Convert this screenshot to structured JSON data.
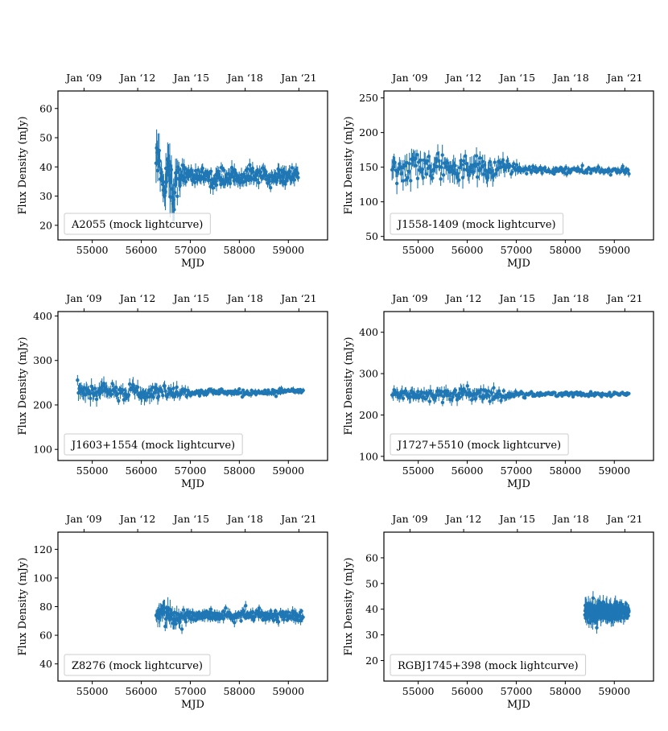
{
  "figure": {
    "series_color": "#1f77b4"
  },
  "chart_data": [
    {
      "type": "scatter",
      "legend": "A2055 (mock lightcurve)",
      "legend_position": "lower-left",
      "xlabel": "MJD",
      "ylabel": "Flux Density (mJy)",
      "xlim": [
        54300,
        59800
      ],
      "ylim": [
        15,
        66
      ],
      "xticks": [
        55000,
        56000,
        57000,
        58000,
        59000
      ],
      "yticks": [
        20,
        30,
        40,
        50,
        60
      ],
      "top_axis_ticks": [
        {
          "label": "Jan ‘09",
          "mjd": 54832
        },
        {
          "label": "Jan ‘12",
          "mjd": 55927
        },
        {
          "label": "Jan ‘15",
          "mjd": 57023
        },
        {
          "label": "Jan ‘18",
          "mjd": 58119
        },
        {
          "label": "Jan ‘21",
          "mjd": 59215
        }
      ],
      "x_range": [
        56300,
        59200
      ],
      "series": [
        {
          "x": [
            56330,
            56400,
            56480,
            56560,
            56640,
            56720,
            56900,
            57100,
            57500,
            57900,
            58100,
            58300,
            58600,
            58900,
            59150
          ],
          "y": [
            45,
            38,
            35,
            40,
            30,
            36,
            38,
            37,
            36,
            37,
            36,
            38,
            36,
            37,
            37
          ],
          "yerr": [
            8,
            7,
            8,
            9,
            10,
            6,
            3,
            3,
            3,
            3,
            3,
            3,
            3,
            3,
            3
          ]
        }
      ]
    },
    {
      "type": "scatter",
      "legend": "J1558-1409 (mock lightcurve)",
      "legend_position": "lower-left",
      "xlabel": "MJD",
      "ylabel": "Flux Density (mJy)",
      "xlim": [
        54300,
        59800
      ],
      "ylim": [
        45,
        260
      ],
      "xticks": [
        55000,
        56000,
        57000,
        58000,
        59000
      ],
      "yticks": [
        50,
        100,
        150,
        200,
        250
      ],
      "top_axis_ticks": [
        {
          "label": "Jan ‘09",
          "mjd": 54832
        },
        {
          "label": "Jan ‘12",
          "mjd": 55927
        },
        {
          "label": "Jan ‘15",
          "mjd": 57023
        },
        {
          "label": "Jan ‘18",
          "mjd": 58119
        },
        {
          "label": "Jan ‘21",
          "mjd": 59215
        }
      ],
      "x_range": [
        54470,
        59300
      ],
      "series": [
        {
          "x": [
            54500,
            54900,
            55300,
            55700,
            56100,
            56500,
            56750,
            57200,
            57700,
            58200,
            58700,
            59200
          ],
          "y": [
            145,
            150,
            148,
            146,
            152,
            145,
            150,
            146,
            145,
            146,
            145,
            144
          ],
          "yerr": [
            20,
            20,
            18,
            20,
            20,
            18,
            15,
            6,
            6,
            6,
            6,
            6
          ]
        }
      ]
    },
    {
      "type": "scatter",
      "legend": "J1603+1554 (mock lightcurve)",
      "legend_position": "lower-left",
      "xlabel": "MJD",
      "ylabel": "Flux Density (mJy)",
      "xlim": [
        54300,
        59800
      ],
      "ylim": [
        75,
        410
      ],
      "xticks": [
        55000,
        56000,
        57000,
        58000,
        59000
      ],
      "yticks": [
        100,
        200,
        300,
        400
      ],
      "top_axis_ticks": [
        {
          "label": "Jan ‘09",
          "mjd": 54832
        },
        {
          "label": "Jan ‘12",
          "mjd": 55927
        },
        {
          "label": "Jan ‘15",
          "mjd": 57023
        },
        {
          "label": "Jan ‘18",
          "mjd": 58119
        },
        {
          "label": "Jan ‘21",
          "mjd": 59215
        }
      ],
      "x_range": [
        54700,
        59300
      ],
      "series": [
        {
          "x": [
            54750,
            55200,
            55700,
            56200,
            56700,
            57100,
            57600,
            58100,
            58600,
            59100
          ],
          "y": [
            228,
            230,
            228,
            229,
            230,
            228,
            229,
            228,
            229,
            230
          ],
          "yerr": [
            22,
            22,
            20,
            20,
            18,
            8,
            8,
            8,
            8,
            8
          ]
        }
      ]
    },
    {
      "type": "scatter",
      "legend": "J1727+5510 (mock lightcurve)",
      "legend_position": "lower-left",
      "xlabel": "MJD",
      "ylabel": "Flux Density (mJy)",
      "xlim": [
        54300,
        59800
      ],
      "ylim": [
        90,
        450
      ],
      "xticks": [
        55000,
        56000,
        57000,
        58000,
        59000
      ],
      "yticks": [
        100,
        200,
        300,
        400
      ],
      "top_axis_ticks": [
        {
          "label": "Jan ‘09",
          "mjd": 54832
        },
        {
          "label": "Jan ‘12",
          "mjd": 55927
        },
        {
          "label": "Jan ‘15",
          "mjd": 57023
        },
        {
          "label": "Jan ‘18",
          "mjd": 58119
        },
        {
          "label": "Jan ‘21",
          "mjd": 59215
        }
      ],
      "x_range": [
        54470,
        59300
      ],
      "series": [
        {
          "x": [
            54500,
            55000,
            55500,
            56000,
            56500,
            56800,
            57300,
            57800,
            58300,
            58800,
            59250
          ],
          "y": [
            250,
            252,
            250,
            251,
            250,
            249,
            250,
            251,
            250,
            249,
            250
          ],
          "yerr": [
            18,
            18,
            18,
            18,
            16,
            12,
            6,
            6,
            6,
            6,
            6
          ]
        }
      ]
    },
    {
      "type": "scatter",
      "legend": "Z8276 (mock lightcurve)",
      "legend_position": "lower-left",
      "xlabel": "MJD",
      "ylabel": "Flux Density (mJy)",
      "xlim": [
        54300,
        59800
      ],
      "ylim": [
        28,
        132
      ],
      "xticks": [
        55000,
        56000,
        57000,
        58000,
        59000
      ],
      "yticks": [
        40,
        60,
        80,
        100,
        120
      ],
      "top_axis_ticks": [
        {
          "label": "Jan ‘09",
          "mjd": 54832
        },
        {
          "label": "Jan ‘12",
          "mjd": 55927
        },
        {
          "label": "Jan ‘15",
          "mjd": 57023
        },
        {
          "label": "Jan ‘18",
          "mjd": 58119
        },
        {
          "label": "Jan ‘21",
          "mjd": 59215
        }
      ],
      "x_range": [
        56300,
        59300
      ],
      "series": [
        {
          "x": [
            56350,
            56550,
            56750,
            57000,
            57400,
            57800,
            58200,
            58600,
            59000,
            59250
          ],
          "y": [
            74,
            75,
            73,
            74,
            74,
            73,
            75,
            74,
            74,
            73
          ],
          "yerr": [
            9,
            9,
            7,
            4,
            4,
            4,
            4,
            4,
            4,
            4
          ]
        }
      ]
    },
    {
      "type": "scatter",
      "legend": "RGBJ1745+398 (mock lightcurve)",
      "legend_position": "lower-left",
      "xlabel": "MJD",
      "ylabel": "Flux Density (mJy)",
      "xlim": [
        54300,
        59800
      ],
      "ylim": [
        12,
        70
      ],
      "xticks": [
        55000,
        56000,
        57000,
        58000,
        59000
      ],
      "yticks": [
        20,
        30,
        40,
        50,
        60
      ],
      "top_axis_ticks": [
        {
          "label": "Jan ‘09",
          "mjd": 54832
        },
        {
          "label": "Jan ‘12",
          "mjd": 55927
        },
        {
          "label": "Jan ‘15",
          "mjd": 57023
        },
        {
          "label": "Jan ‘18",
          "mjd": 58119
        },
        {
          "label": "Jan ‘21",
          "mjd": 59215
        }
      ],
      "x_range": [
        58400,
        59300
      ],
      "series": [
        {
          "x": [
            58420,
            58600,
            58800,
            59000,
            59200,
            59280
          ],
          "y": [
            39,
            38,
            40,
            38,
            39,
            39
          ],
          "yerr": [
            4,
            4,
            4,
            4,
            3,
            3
          ]
        }
      ]
    }
  ]
}
